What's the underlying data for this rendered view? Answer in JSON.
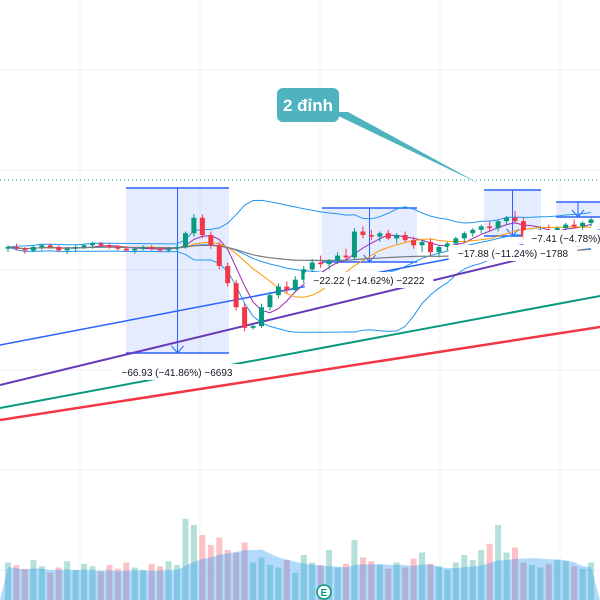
{
  "callout": {
    "text": "2 đỉnh",
    "color": "#4fb3bf"
  },
  "measurements": [
    {
      "label": "−66.93 (−41.86%) −6693",
      "dir": "down"
    },
    {
      "label": "−22.22 (−14.62%) −2222",
      "dir": "down"
    },
    {
      "label": "−17.88 (−11.24%) −1788",
      "dir": "down"
    },
    {
      "label": "−7.41 (−4.78%)",
      "dir": "down"
    }
  ],
  "event_marker": {
    "text": "E",
    "color": "#089981"
  },
  "colors": {
    "up": "#089981",
    "down": "#f23645",
    "bollinger": "#2196f3",
    "ma_orange": "#ff9800",
    "ma_purple": "#9c27b0",
    "ma_violet": "#673ab7",
    "ma_green": "#089981",
    "ma_red": "#f23645",
    "ma_black": "#787b86",
    "ma_blue": "#2962ff",
    "measure_fill": "rgba(41,98,255,0.12)",
    "measure_line": "#2962ff",
    "volume_up": "rgba(8,153,129,0.3)",
    "volume_down": "rgba(242,54,69,0.3)",
    "volume_ma": "rgba(33,150,243,0.35)"
  },
  "chart_data": {
    "type": "candlestick",
    "title": "",
    "grid": true,
    "ohlc": [
      [
        140,
        142,
        138,
        141
      ],
      [
        141,
        143,
        139,
        140
      ],
      [
        140,
        141,
        137,
        139
      ],
      [
        139,
        142,
        138,
        141
      ],
      [
        141,
        143,
        139,
        142
      ],
      [
        142,
        143,
        140,
        141
      ],
      [
        141,
        142,
        138,
        139
      ],
      [
        139,
        141,
        137,
        140
      ],
      [
        140,
        142,
        138,
        141
      ],
      [
        141,
        143,
        140,
        142
      ],
      [
        142,
        144,
        140,
        143
      ],
      [
        143,
        144,
        141,
        142
      ],
      [
        142,
        143,
        140,
        141
      ],
      [
        141,
        142,
        139,
        140
      ],
      [
        140,
        141,
        138,
        139
      ],
      [
        139,
        141,
        137,
        140
      ],
      [
        140,
        142,
        139,
        141
      ],
      [
        141,
        142,
        139,
        140
      ],
      [
        140,
        141,
        138,
        139
      ],
      [
        139,
        141,
        138,
        140
      ],
      [
        140,
        142,
        139,
        141
      ],
      [
        141,
        150,
        140,
        149
      ],
      [
        149,
        160,
        147,
        158
      ],
      [
        158,
        160,
        146,
        148
      ],
      [
        148,
        150,
        140,
        142
      ],
      [
        142,
        144,
        128,
        130
      ],
      [
        130,
        132,
        118,
        120
      ],
      [
        120,
        122,
        104,
        106
      ],
      [
        106,
        108,
        92,
        94
      ],
      [
        94,
        96,
        93,
        95
      ],
      [
        95,
        108,
        94,
        106
      ],
      [
        106,
        115,
        104,
        113
      ],
      [
        113,
        120,
        111,
        118
      ],
      [
        118,
        121,
        114,
        116
      ],
      [
        116,
        124,
        115,
        122
      ],
      [
        122,
        130,
        120,
        128
      ],
      [
        128,
        134,
        126,
        132
      ],
      [
        132,
        136,
        129,
        131
      ],
      [
        131,
        134,
        128,
        133
      ],
      [
        133,
        138,
        131,
        136
      ],
      [
        136,
        140,
        133,
        135
      ],
      [
        135,
        152,
        134,
        150
      ],
      [
        150,
        153,
        146,
        148
      ],
      [
        148,
        151,
        145,
        147
      ],
      [
        147,
        150,
        144,
        149
      ],
      [
        149,
        151,
        145,
        146
      ],
      [
        146,
        149,
        143,
        148
      ],
      [
        148,
        150,
        144,
        145
      ],
      [
        145,
        147,
        140,
        142
      ],
      [
        142,
        145,
        138,
        144
      ],
      [
        144,
        146,
        136,
        138
      ],
      [
        138,
        142,
        135,
        141
      ],
      [
        141,
        144,
        139,
        143
      ],
      [
        143,
        147,
        141,
        146
      ],
      [
        146,
        150,
        144,
        149
      ],
      [
        149,
        152,
        147,
        151
      ],
      [
        151,
        154,
        149,
        153
      ],
      [
        153,
        156,
        150,
        152
      ],
      [
        152,
        157,
        150,
        156
      ],
      [
        156,
        159,
        154,
        158
      ],
      [
        158,
        162,
        155,
        156
      ],
      [
        156,
        158,
        145,
        147
      ],
      [
        147,
        151,
        145,
        150
      ],
      [
        150,
        153,
        148,
        151
      ],
      [
        151,
        154,
        149,
        150
      ],
      [
        150,
        153,
        148,
        152
      ],
      [
        152,
        155,
        150,
        154
      ],
      [
        154,
        157,
        152,
        153
      ],
      [
        153,
        156,
        151,
        155
      ],
      [
        155,
        158,
        153,
        157
      ]
    ],
    "volume": [
      30,
      28,
      25,
      32,
      27,
      22,
      26,
      31,
      24,
      29,
      27,
      23,
      28,
      25,
      30,
      26,
      24,
      29,
      27,
      31,
      28,
      65,
      60,
      52,
      44,
      50,
      40,
      38,
      46,
      30,
      34,
      28,
      26,
      32,
      22,
      36,
      30,
      28,
      40,
      26,
      29,
      48,
      34,
      31,
      28,
      25,
      30,
      26,
      33,
      38,
      29,
      27,
      24,
      30,
      36,
      32,
      40,
      45,
      60,
      38,
      42,
      30,
      28,
      26,
      29,
      32,
      31,
      27,
      25,
      30
    ]
  }
}
